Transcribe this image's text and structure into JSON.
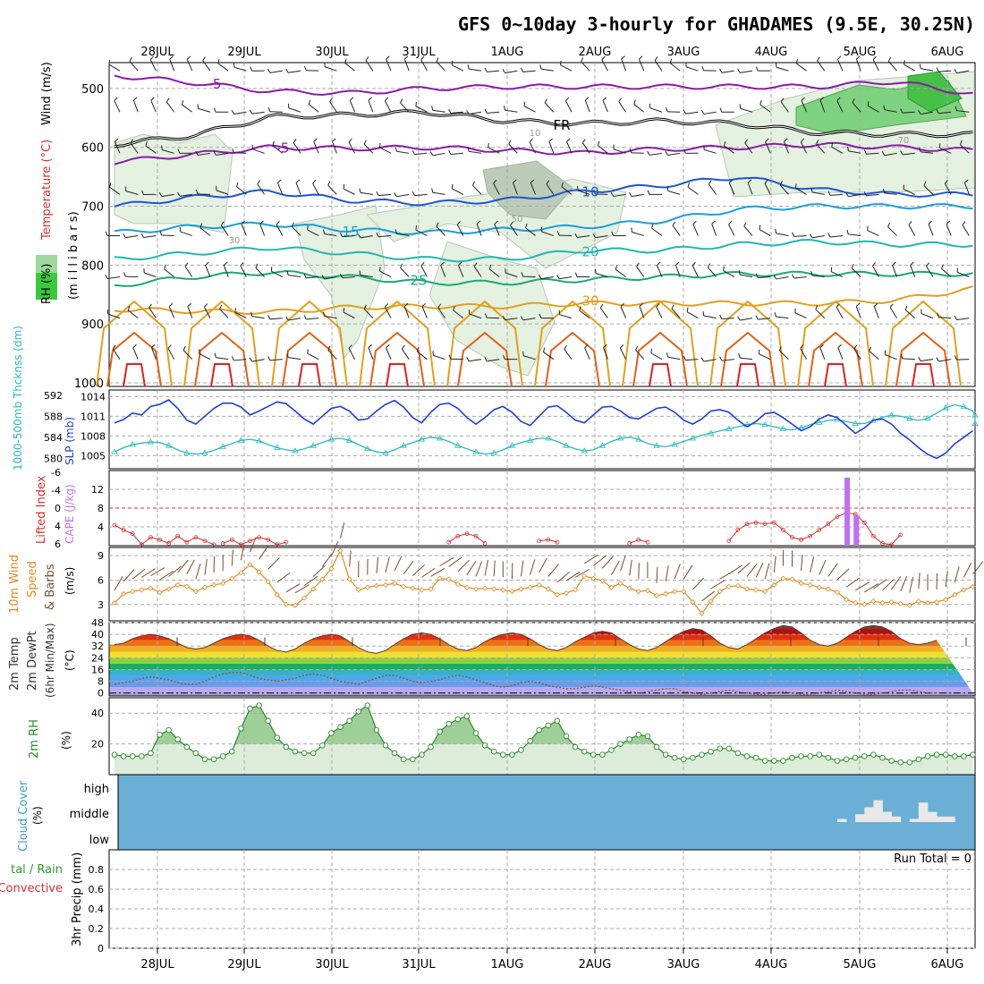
{
  "title": "GFS 0~10day 3-hourly for GHADAMES (9.5E, 30.25N)",
  "dates": [
    "28JUL",
    "29JUL",
    "30JUL",
    "31JUL",
    "1AUG",
    "2AUG",
    "3AUG",
    "4AUG",
    "5AUG",
    "6AUG"
  ],
  "panel_labels": {
    "upper": {
      "rh": "RH (%)",
      "temp": "Temperature (°C)",
      "wind": "Wind (m/s)",
      "mb": "(m i l l i b a r s)"
    },
    "slp": {
      "thick": "1000-500mb Thcknss (dm)",
      "slp": "SLP (mb)"
    },
    "cape": {
      "li": "Lifted Index",
      "cape": "CAPE (J/kg)"
    },
    "wind10": {
      "l1": "10m Wind",
      "l2": "Speed",
      "l3": "& Barbs",
      "unit": "(m/s)"
    },
    "temp2m": {
      "l1": "2m Temp",
      "l2": "2m DewPt",
      "l3": "(6hr Min/Max)",
      "unit": "(°C)"
    },
    "rh2m": {
      "l1": "2m RH",
      "unit": "(%)"
    },
    "cloud": {
      "l1": "Cloud Cover",
      "unit": "(%)",
      "high": "high",
      "middle": "middle",
      "low": "low"
    },
    "precip": {
      "l1": "tal / Rain",
      "l2": "Convective",
      "l3": "3hr Precip (mm)",
      "run_total": "Run Total = 0"
    }
  },
  "colors": {
    "slp": "#1f3fd0",
    "thickness": "#2ab7c0",
    "lifted_index": "#d43030",
    "cape": "#c070f0",
    "wind_speed": "#e08a20",
    "wind_barbs": "#7a4a2a",
    "rh_fill": "#dcecd8",
    "rh_fill_hi": "#9fcf98",
    "rh_line": "#2a8a2a",
    "cloud_bg": "#6bafd6",
    "cloud_bar": "#e8e8e8",
    "iso_neg": "#8a1aa8",
    "iso_freeze": "#000000",
    "iso_10": "#1f55d0",
    "iso_15": "#1a9fd8",
    "iso_20": "#22b6b0",
    "iso_25": "#1aa878",
    "iso_30": "#e0a020",
    "iso_35": "#e06018",
    "iso_40": "#e02020"
  },
  "chart_data": [
    {
      "type": "line",
      "panel": "upper-air cross-section",
      "y_axis": "pressure (mb)",
      "ylim": [
        1000,
        450
      ],
      "yticks": [
        500,
        600,
        700,
        800,
        900,
        1000
      ],
      "isotherms": [
        {
          "label": "-5",
          "levels_mb": [
            478,
            490,
            505,
            508,
            500,
            497,
            497,
            497,
            497,
            497,
            488,
            510
          ]
        },
        {
          "label": "FR",
          "levels_mb": [
            595,
            580,
            548,
            545,
            540,
            555,
            560,
            555,
            560,
            575,
            578,
            578
          ]
        },
        {
          "label": "-5",
          "levels_mb": [
            625,
            612,
            600,
            602,
            600,
            605,
            610,
            603,
            600,
            595,
            600,
            605
          ]
        },
        {
          "label": "10",
          "levels_mb": [
            700,
            685,
            675,
            690,
            695,
            690,
            675,
            665,
            650,
            672,
            680,
            680
          ]
        },
        {
          "label": "15",
          "levels_mb": [
            745,
            735,
            730,
            740,
            745,
            740,
            735,
            725,
            705,
            700,
            700,
            700
          ]
        },
        {
          "label": "20",
          "levels_mb": [
            790,
            780,
            770,
            780,
            790,
            790,
            775,
            775,
            765,
            760,
            765,
            765
          ]
        },
        {
          "label": "25",
          "levels_mb": [
            835,
            820,
            812,
            820,
            830,
            830,
            825,
            820,
            815,
            815,
            815,
            815
          ]
        },
        {
          "label": "30",
          "levels_mb": [
            875,
            878,
            880,
            872,
            870,
            870,
            865,
            865,
            865,
            865,
            860,
            840
          ]
        }
      ],
      "rh_labels": [
        "10",
        "30",
        "50",
        "70"
      ]
    },
    {
      "type": "line",
      "panel": "SLP / thickness",
      "series": [
        {
          "name": "SLP (mb)",
          "axis_ticks": [
            1005,
            1008,
            1011,
            1014
          ],
          "values": [
            1010,
            1010.5,
            1011.5,
            1011.2,
            1012.5,
            1012.8,
            1013.5,
            1012.2,
            1010.4,
            1009.8,
            1011,
            1012.2,
            1013,
            1013,
            1012.4,
            1011.2,
            1011.8,
            1012.5,
            1013.2,
            1012.9,
            1011.8,
            1010.6,
            1009.8,
            1011,
            1012.2,
            1012.5,
            1011.8,
            1010.4,
            1010.6,
            1011.8,
            1012.8,
            1013.4,
            1012.4,
            1010.8,
            1010,
            1011.6,
            1012.8,
            1013,
            1012.2,
            1010.8,
            1009.8,
            1010.8,
            1012,
            1012.5,
            1011.6,
            1010.2,
            1009.6,
            1011,
            1012.4,
            1012.6,
            1011.6,
            1010.4,
            1010,
            1011.2,
            1012.4,
            1012.5,
            1011.8,
            1010.8,
            1010.6,
            1011.4,
            1012.2,
            1012.4,
            1011.6,
            1010.4,
            1009.8,
            1010.6,
            1011.8,
            1012,
            1011.6,
            1010.4,
            1009.4,
            1010.2,
            1011.4,
            1011.6,
            1010.8,
            1009.8,
            1008.8,
            1009.4,
            1010.6,
            1011.2,
            1010.8,
            1009.6,
            1008.4,
            1009.2,
            1010.4,
            1010.6,
            1009.8,
            1008.4,
            1007.4,
            1006.2,
            1005.2,
            1004.6,
            1005.4,
            1006.8,
            1007.8,
            1008.8
          ]
        },
        {
          "name": "1000-500mb Thcknss (dm)",
          "axis_ticks": [
            580,
            584,
            588,
            592
          ],
          "values": [
            581.2,
            582,
            582.6,
            582.9,
            583.1,
            583,
            582.4,
            581.6,
            581,
            580.8,
            581,
            581.5,
            582.2,
            582.8,
            583.4,
            583.6,
            583.3,
            582.6,
            582,
            581.6,
            581.4,
            581.8,
            582.4,
            583,
            583.6,
            583.8,
            583.4,
            582.6,
            581.8,
            581.2,
            581,
            581.6,
            582.4,
            583,
            583.6,
            584,
            583.8,
            583.2,
            582.4,
            581.8,
            581.2,
            580.8,
            581,
            581.6,
            582.4,
            583,
            583.4,
            583.8,
            583.8,
            583.2,
            582.4,
            581.8,
            581.4,
            581.6,
            582.4,
            583.2,
            583.8,
            584,
            583.6,
            582.8,
            582.4,
            582.2,
            582.6,
            583.2,
            583.8,
            584.4,
            584.8,
            585.2,
            585.6,
            586,
            586.4,
            586.6,
            586.4,
            586,
            585.6,
            585.4,
            585.8,
            586.4,
            586.8,
            587.2,
            587.4,
            587,
            586.6,
            586.6,
            587.2,
            587.8,
            588.2,
            588,
            587.6,
            587.2,
            587.6,
            588.6,
            589.6,
            590.2,
            589.8,
            589,
            588.2,
            587.4,
            586.6
          ]
        }
      ]
    },
    {
      "type": "line",
      "panel": "Lifted index / CAPE",
      "li_axis_ticks": [
        6,
        4,
        0,
        2,
        4,
        6
      ],
      "cape_axis_ticks": [
        4,
        8,
        12
      ],
      "lifted_index_segments": [
        [
          [
            0,
            2.8
          ],
          [
            1,
            3.6
          ],
          [
            2,
            4.2
          ],
          [
            3,
            6.0
          ],
          [
            4,
            4.8
          ],
          [
            5,
            5.2
          ],
          [
            6,
            5.8
          ],
          [
            7,
            4.6
          ],
          [
            8,
            5.6
          ],
          [
            9,
            4.8
          ],
          [
            10,
            5.4
          ],
          [
            11,
            6.0
          ]
        ],
        [
          [
            12,
            5.8
          ],
          [
            13,
            5.2
          ],
          [
            14,
            6.0
          ],
          [
            15,
            5.4
          ],
          [
            16,
            4.8
          ],
          [
            17,
            5.2
          ],
          [
            18,
            6.0
          ],
          [
            19,
            5.6
          ]
        ],
        [
          [
            37,
            5.6
          ],
          [
            38,
            4.6
          ],
          [
            39,
            4.2
          ],
          [
            40,
            4.6
          ],
          [
            41,
            5.8
          ]
        ],
        [
          [
            47,
            5.4
          ],
          [
            48,
            5.2
          ],
          [
            49,
            5.6
          ]
        ],
        [
          [
            57,
            5.8
          ],
          [
            58,
            5.2
          ],
          [
            59,
            5.6
          ]
        ],
        [
          [
            68,
            5.4
          ],
          [
            69,
            3.6
          ],
          [
            70,
            2.6
          ],
          [
            71,
            2.4
          ],
          [
            72,
            2.6
          ],
          [
            73,
            2.4
          ],
          [
            74,
            3.6
          ],
          [
            75,
            4.8
          ],
          [
            76,
            5.2
          ],
          [
            77,
            4.6
          ],
          [
            78,
            3.6
          ],
          [
            79,
            2.6
          ],
          [
            80,
            1.4
          ],
          [
            81,
            0.8
          ],
          [
            82,
            1.0
          ],
          [
            83,
            2.4
          ],
          [
            84,
            4.6
          ],
          [
            85,
            5.8
          ],
          [
            86,
            6.0
          ],
          [
            87,
            4.4
          ]
        ]
      ],
      "cape_bars": [
        [
          81,
          14.5
        ],
        [
          82,
          6.5
        ]
      ]
    },
    {
      "type": "line",
      "panel": "10m wind speed",
      "ylim": [
        1,
        10
      ],
      "yticks": [
        3,
        6,
        9
      ],
      "values": [
        3.2,
        4.3,
        4.6,
        4.8,
        5.0,
        4.5,
        4.9,
        5.4,
        5.2,
        4.6,
        5.1,
        5.4,
        5.6,
        6.2,
        6.9,
        7.9,
        7.0,
        5.8,
        4.2,
        3.0,
        2.9,
        3.8,
        4.9,
        6.1,
        7.4,
        9.6,
        6.1,
        4.8,
        5.1,
        5.3,
        5.4,
        5.6,
        5.2,
        5.0,
        4.8,
        4.9,
        6.2,
        6.1,
        5.5,
        5.1,
        4.9,
        5.0,
        4.9,
        4.8,
        4.6,
        4.9,
        5.1,
        5.4,
        4.9,
        4.2,
        4.4,
        4.8,
        6.5,
        6.2,
        5.9,
        5.1,
        5.6,
        5.0,
        4.6,
        4.7,
        4.1,
        4.3,
        4.6,
        4.6,
        3.3,
        1.9,
        3.4,
        4.6,
        5.2,
        5.3,
        4.9,
        4.8,
        4.6,
        5.4,
        6.2,
        6.1,
        5.6,
        5.4,
        5.1,
        4.9,
        4.5,
        3.6,
        3.2,
        3.0,
        3.4,
        3.2,
        3.3,
        3.1,
        2.9,
        3.4,
        3.2,
        3.3,
        3.6,
        4.2,
        4.8,
        5.2
      ]
    },
    {
      "type": "area",
      "panel": "2m temperature / dewpoint",
      "ylim": [
        -2,
        48
      ],
      "yticks": [
        0,
        8,
        16,
        24,
        32,
        40,
        48
      ],
      "temperature_values": [
        33,
        34,
        37,
        39,
        40,
        39,
        37,
        34,
        31,
        30,
        31,
        34,
        37,
        39,
        40,
        39,
        36,
        32,
        29,
        28,
        30,
        34,
        37,
        39,
        40,
        39,
        35,
        31,
        28,
        27,
        29,
        33,
        37,
        40,
        41,
        40,
        37,
        33,
        30,
        29,
        31,
        35,
        38,
        40,
        41,
        40,
        37,
        33,
        30,
        29,
        31,
        35,
        38,
        41,
        42,
        41,
        37,
        33,
        30,
        29,
        31,
        35,
        39,
        42,
        44,
        43,
        39,
        34,
        31,
        30,
        33,
        37,
        41,
        44,
        46,
        45,
        41,
        36,
        33,
        32,
        34,
        38,
        42,
        45,
        46,
        45,
        42,
        37,
        34,
        33,
        34,
        36
      ],
      "dewpoint_values": [
        6,
        7,
        8,
        10,
        11,
        10,
        9,
        7,
        6,
        6,
        8,
        11,
        13,
        14,
        14,
        12,
        10,
        9,
        8,
        9,
        10,
        12,
        13,
        12,
        10,
        8,
        7,
        6,
        8,
        10,
        12,
        12,
        10,
        8,
        7,
        8,
        9,
        11,
        12,
        11,
        9,
        7,
        5,
        4,
        5,
        7,
        8,
        7,
        5,
        4,
        3,
        3,
        4,
        5,
        4,
        3,
        2,
        1,
        0,
        1,
        2,
        3,
        3,
        1,
        0,
        -1,
        0,
        1,
        2,
        1,
        0,
        -1,
        -1,
        0,
        1,
        0,
        -1,
        -1,
        0,
        1,
        2,
        1,
        0,
        -1,
        -1,
        0,
        1,
        2,
        2,
        1,
        0,
        0
      ]
    },
    {
      "type": "area",
      "panel": "2m relative humidity",
      "ylim": [
        0,
        50
      ],
      "yticks": [
        20,
        40
      ],
      "values": [
        13,
        12,
        12,
        12,
        14,
        26,
        29,
        23,
        18,
        14,
        10,
        10,
        12,
        15,
        30,
        43,
        45,
        35,
        24,
        18,
        15,
        14,
        14,
        19,
        27,
        31,
        35,
        41,
        45,
        29,
        19,
        14,
        10,
        10,
        13,
        18,
        28,
        33,
        36,
        38,
        27,
        19,
        15,
        13,
        13,
        16,
        22,
        29,
        32,
        35,
        25,
        18,
        15,
        13,
        13,
        16,
        20,
        23,
        26,
        25,
        18,
        13,
        11,
        10,
        11,
        13,
        15,
        17,
        17,
        14,
        12,
        11,
        9,
        9,
        9,
        11,
        12,
        12,
        13,
        11,
        9,
        10,
        11,
        12,
        13,
        11,
        9,
        8,
        8,
        10,
        12,
        13,
        13,
        12,
        12,
        13
      ]
    },
    {
      "type": "bar",
      "panel": "cloud cover",
      "categories": [
        "low",
        "middle",
        "high"
      ],
      "middle_cloud_blocks": [
        [
          80,
          1
        ],
        [
          82,
          3
        ],
        [
          83,
          6
        ],
        [
          84,
          9
        ],
        [
          85,
          4
        ],
        [
          86,
          2
        ],
        [
          88,
          1
        ],
        [
          89,
          8
        ],
        [
          90,
          4
        ],
        [
          91,
          2
        ],
        [
          92,
          2
        ]
      ]
    },
    {
      "type": "line",
      "panel": "3hr precipitation",
      "ylim": [
        0,
        1.0
      ],
      "yticks": [
        0,
        0.2,
        0.4,
        0.6,
        0.8
      ],
      "values": []
    }
  ]
}
